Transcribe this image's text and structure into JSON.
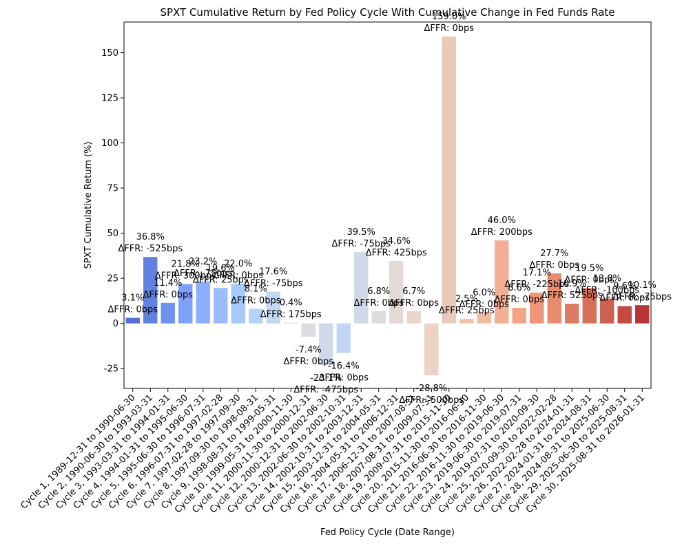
{
  "chart_data": {
    "type": "bar",
    "title": "SPXT Cumulative Return by Fed Policy Cycle With Cumulative Change in Fed Funds Rate",
    "xlabel": "Fed Policy Cycle (Date Range)",
    "ylabel": "SPXT Cumulative Return (%)",
    "ylim": [
      -36,
      167
    ],
    "yticks": [
      -25,
      0,
      25,
      50,
      75,
      100,
      125,
      150
    ],
    "grid": false,
    "legend": "none",
    "colormap": "coolwarm",
    "categories": [
      "Cycle 1, 1989-12-31 to 1990-06-30",
      "Cycle 2, 1990-06-30 to 1993-03-31",
      "Cycle 3, 1993-03-31 to 1994-01-31",
      "Cycle 4, 1994-01-31 to 1995-06-30",
      "Cycle 5, 1995-06-30 to 1996-07-31",
      "Cycle 6, 1996-07-31 to 1997-02-28",
      "Cycle 7, 1997-02-28 to 1997-09-30",
      "Cycle 8, 1997-09-30 to 1998-08-31",
      "Cycle 9, 1998-08-31 to 1999-05-31",
      "Cycle 10, 1999-05-31 to 2000-11-30",
      "Cycle 11, 2000-11-30 to 2000-12-31",
      "Cycle 12, 2000-12-31 to 2002-06-30",
      "Cycle 13, 2002-06-30 to 2002-10-31",
      "Cycle 14, 2002-10-31 to 2003-12-31",
      "Cycle 15, 2003-12-31 to 2004-05-31",
      "Cycle 16, 2004-05-31 to 2006-12-31",
      "Cycle 17, 2006-12-31 to 2007-08-31",
      "Cycle 18, 2007-08-31 to 2009-07-31",
      "Cycle 19, 2009-07-31 to 2015-11-30",
      "Cycle 20, 2015-11-30 to 2016-06-30",
      "Cycle 21, 2016-06-30 to 2016-11-30",
      "Cycle 22, 2016-11-30 to 2019-06-30",
      "Cycle 23, 2019-06-30 to 2019-07-31",
      "Cycle 24, 2019-07-31 to 2020-09-30",
      "Cycle 25, 2020-09-30 to 2022-02-28",
      "Cycle 26, 2022-02-28 to 2024-01-31",
      "Cycle 27, 2024-01-31 to 2024-08-31",
      "Cycle 28, 2024-08-31 to 2025-06-30",
      "Cycle 29, 2025-06-30 to 2025-08-31",
      "Cycle 30, 2025-08-31 to 2026-01-31"
    ],
    "values": [
      3.1,
      36.8,
      11.4,
      21.8,
      23.2,
      19.6,
      22.0,
      8.1,
      17.6,
      0.4,
      -7.4,
      -23.1,
      -16.4,
      39.5,
      6.8,
      34.6,
      6.7,
      -28.8,
      159.0,
      2.5,
      6.0,
      46.0,
      8.6,
      17.1,
      27.7,
      10.9,
      19.5,
      13.8,
      9.6,
      10.1
    ],
    "value_labels": [
      "3.1%",
      "36.8%",
      "11.4%",
      "21.8%",
      "23.2%",
      "19.6%",
      "22.0%",
      "8.1%",
      "17.6%",
      "0.4%",
      "-7.4%",
      "-23.1%",
      "-16.4%",
      "39.5%",
      "6.8%",
      "34.6%",
      "6.7%",
      "-28.8%",
      "159.0%",
      "2.5%",
      "6.0%",
      "46.0%",
      "8.6%",
      "17.1%",
      "27.7%",
      "10.9%",
      "19.5%",
      "13.8%",
      "9.6%",
      "10.1%"
    ],
    "ffr_labels": [
      "ΔFFR: 0bps",
      "ΔFFR: -525bps",
      "ΔFFR: 0bps",
      "ΔFFR: 300bps",
      "ΔFFR: -75bps",
      "ΔFFR: 25bps",
      "ΔFFR: 0bps",
      "ΔFFR: 0bps",
      "ΔFFR: -75bps",
      "ΔFFR: 175bps",
      "ΔFFR: 0bps",
      "ΔFFR: -475bps",
      "ΔFFR: 0bps",
      "ΔFFR: -75bps",
      "ΔFFR: 0bps",
      "ΔFFR: 425bps",
      "ΔFFR: 0bps",
      "ΔFFR: -500bps",
      "ΔFFR: 0bps",
      "ΔFFR: 25bps",
      "ΔFFR: 0bps",
      "ΔFFR: 200bps",
      "ΔFFR: 0bps",
      "ΔFFR: -225bps",
      "ΔFFR: 0bps",
      "ΔFFR: 525bps",
      "ΔFFR: 0bps",
      "ΔFFR: -100bps",
      "ΔFFR: 0bps",
      "ΔFFR: -75bps"
    ],
    "colors": [
      "#5470d3",
      "#6282e2",
      "#6f92ee",
      "#7da0f8",
      "#8cafff",
      "#9bbcff",
      "#a9c8fc",
      "#b6d1f8",
      "#c4d7f3",
      "#d0dcec",
      "#dcdde1",
      "#cedaec",
      "#c2d5f4",
      "#cfd9e8",
      "#dcdcdc",
      "#e3dad5",
      "#e8d6cd",
      "#ecd3c5",
      "#ebc9b8",
      "#edc3ad",
      "#f0bba1",
      "#f2af93",
      "#f2a485",
      "#ef9678",
      "#e88b6e",
      "#df7a63",
      "#d77059",
      "#cd6150",
      "#c24b44",
      "#b73538"
    ]
  }
}
